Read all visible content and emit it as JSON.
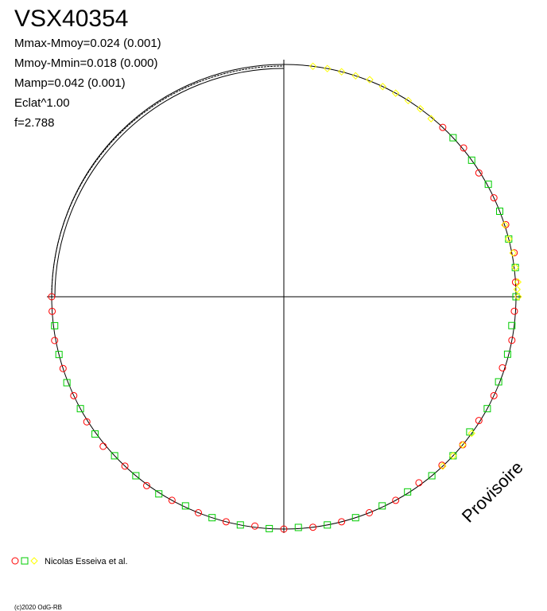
{
  "chart_data": {
    "type": "polar-phase",
    "title": "VSX40354",
    "stats": [
      "Mmax-Mmoy=0.024 (0.001)",
      "Mmoy-Mmin=0.018 (0.000)",
      "Mamp=0.042 (0.001)",
      "Eclat^1.00",
      "f=2.788"
    ],
    "watermark": "Provisoire",
    "legend_label": "Nicolas Esseiva et al.",
    "copyright": "(c)2020 OdG-RB",
    "series": [
      {
        "color": "#ff0000",
        "marker": "circle",
        "x": [
          0.12,
          0.14,
          0.16,
          0.18,
          0.2,
          0.22,
          0.24,
          0.26,
          0.28,
          0.3,
          0.32,
          0.34,
          0.36,
          0.38,
          0.4,
          0.42,
          0.44,
          0.46,
          0.48,
          0.5,
          0.52,
          0.54,
          0.56,
          0.58,
          0.6,
          0.62,
          0.64,
          0.66,
          0.68,
          0.7,
          0.72,
          0.74,
          0.75
        ],
        "values": [
          1.0,
          1.005,
          0.995,
          1.0,
          1.005,
          1.01,
          1.0,
          0.995,
          1.0,
          0.99,
          1.0,
          0.995,
          1.0,
          0.995,
          0.99,
          1.0,
          1.0,
          1.0,
          1.0,
          1.0,
          0.995,
          1.0,
          1.0,
          1.0,
          1.005,
          1.0,
          1.01,
          1.005,
          1.0,
          1.0,
          1.005,
          1.0,
          1.0
        ]
      },
      {
        "color": "#00cc00",
        "marker": "square",
        "x": [
          0.13,
          0.15,
          0.17,
          0.19,
          0.21,
          0.23,
          0.25,
          0.27,
          0.29,
          0.31,
          0.33,
          0.35,
          0.37,
          0.39,
          0.41,
          0.43,
          0.45,
          0.47,
          0.49,
          0.51,
          0.53,
          0.55,
          0.57,
          0.59,
          0.61,
          0.63,
          0.65,
          0.67,
          0.69,
          0.71,
          0.73
        ],
        "values": [
          1.0,
          1.0,
          1.005,
          1.0,
          1.0,
          1.005,
          1.0,
          0.99,
          0.995,
          0.995,
          1.0,
          0.99,
          1.0,
          1.0,
          0.995,
          0.995,
          1.0,
          1.0,
          0.995,
          1.0,
          1.0,
          1.0,
          0.995,
          1.005,
          1.0,
          1.0,
          1.005,
          1.0,
          1.005,
          1.0,
          0.995
        ]
      },
      {
        "color": "#ffff00",
        "marker": "diamond",
        "x": [
          0.02,
          0.03,
          0.04,
          0.05,
          0.06,
          0.07,
          0.08,
          0.09,
          0.1,
          0.11,
          0.2,
          0.21,
          0.22,
          0.23,
          0.24,
          0.245,
          0.25,
          0.35,
          0.36,
          0.37,
          0.38
        ],
        "values": [
          1.0,
          1.0,
          1.0,
          1.0,
          1.005,
          1.0,
          1.0,
          1.0,
          1.0,
          0.995,
          1.0,
          1.0,
          1.005,
          1.005,
          1.01,
          1.005,
          1.01,
          1.0,
          1.0,
          1.0,
          1.0
        ]
      }
    ]
  }
}
